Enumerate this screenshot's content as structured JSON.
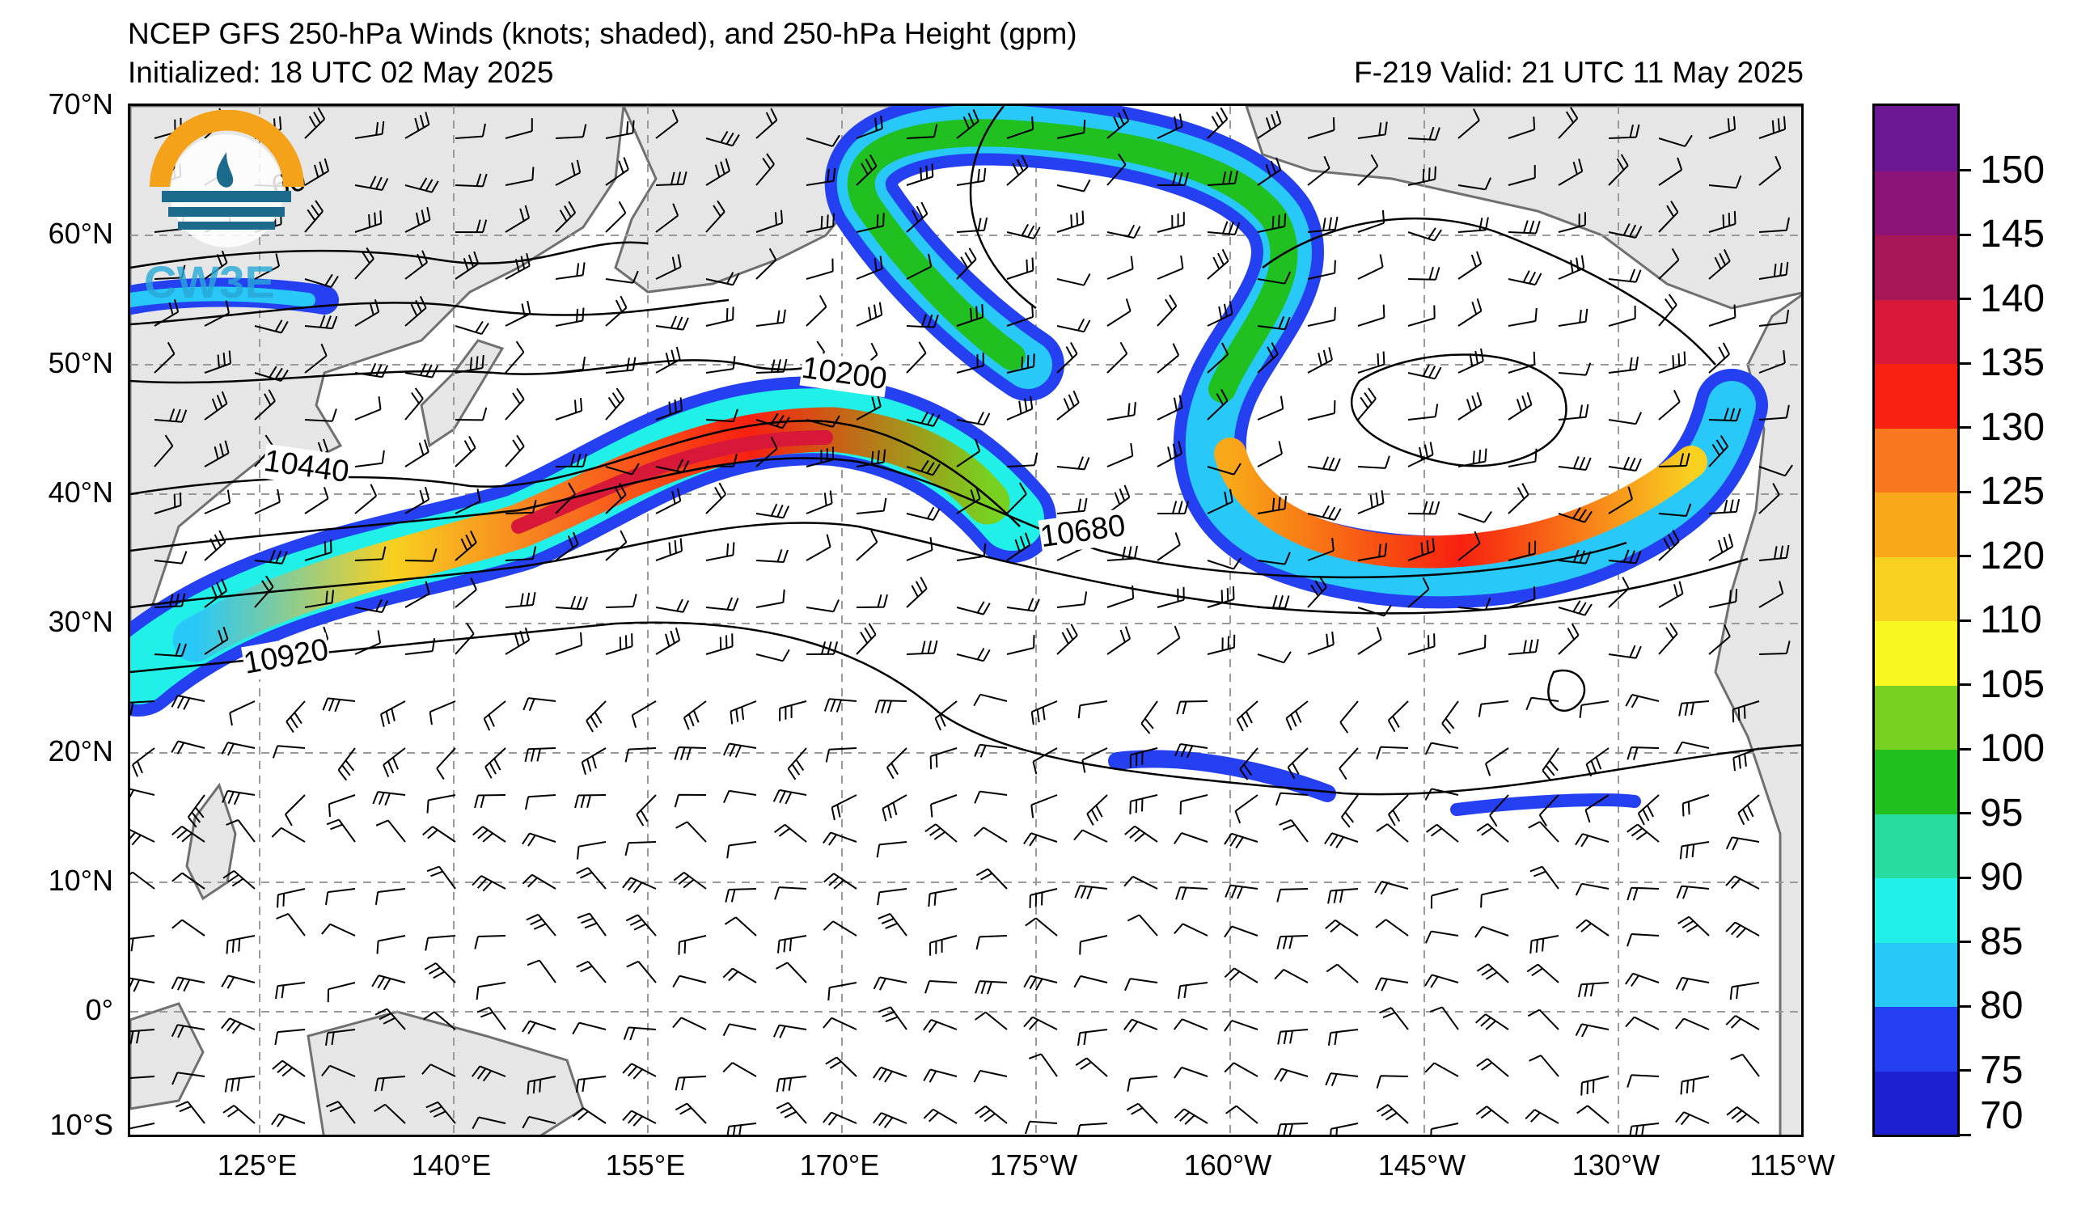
{
  "header": {
    "title": "NCEP GFS 250-hPa Winds (knots; shaded), and 250-hPa Height (gpm)",
    "initialized": "Initialized: 18 UTC 02 May 2025",
    "valid": "F-219  Valid: 21 UTC 11 May 2025"
  },
  "logo": {
    "text": "CW3E",
    "icon": "cw3e-logo-icon"
  },
  "map": {
    "lat_labels": [
      "70°N",
      "60°N",
      "50°N",
      "40°N",
      "30°N",
      "20°N",
      "10°N",
      "0°",
      "10°S"
    ],
    "lon_labels": [
      "125°E",
      "140°E",
      "155°E",
      "170°E",
      "175°W",
      "160°W",
      "145°W",
      "130°W",
      "115°W"
    ],
    "contour_labels": [
      "10200",
      "10440",
      "10680",
      "10920",
      "0"
    ],
    "partial_label": "60",
    "land_color": "#e6e6e6",
    "coast_color": "#707070"
  },
  "colorbar": {
    "labels": [
      "150",
      "145",
      "140",
      "135",
      "130",
      "125",
      "120",
      "110",
      "105",
      "100",
      "95",
      "90",
      "85",
      "80",
      "75",
      "70"
    ],
    "colors": [
      "#1c20d0",
      "#2440f0",
      "#28c8f8",
      "#20f0e8",
      "#28dca0",
      "#20c020",
      "#78d020",
      "#f8f820",
      "#f8d020",
      "#f8a818",
      "#f87820",
      "#f82010",
      "#d81838",
      "#a81858",
      "#8c1478",
      "#6c1894"
    ]
  }
}
